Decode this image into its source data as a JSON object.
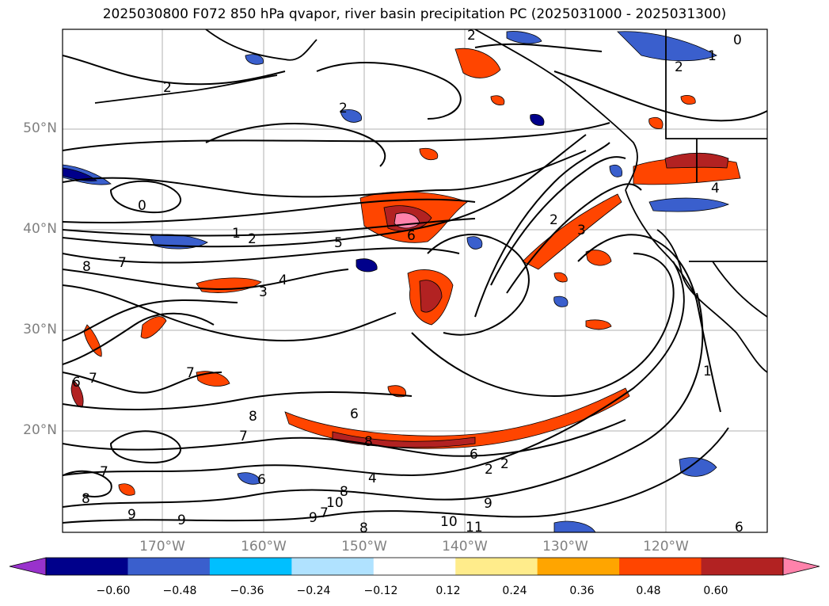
{
  "title": "2025030800 F072 850 hPa qvapor, river basin precipitation PC (2025031000 - 2025031300)",
  "lat_labels": [
    "50°N",
    "40°N",
    "30°N",
    "20°N"
  ],
  "lon_labels": [
    "170°W",
    "160°W",
    "150°W",
    "140°W",
    "130°W",
    "120°W"
  ],
  "contour_labels": [
    "2",
    "2",
    "2",
    "1",
    "0",
    "0",
    "1",
    "2",
    "5",
    "6",
    "2",
    "3",
    "2",
    "4",
    "8",
    "7",
    "3",
    "4",
    "7",
    "6",
    "7",
    "8",
    "6",
    "8",
    "7",
    "6",
    "2",
    "2",
    "8",
    "7",
    "4",
    "6",
    "8",
    "9",
    "9",
    "9",
    "7",
    "10",
    "8",
    "10",
    "11",
    "9",
    "1",
    "6"
  ],
  "colorbar": {
    "ticks": [
      "−0.60",
      "−0.48",
      "−0.36",
      "−0.24",
      "−0.12",
      "0.12",
      "0.24",
      "0.36",
      "0.48",
      "0.60"
    ],
    "colors": [
      "#9932cc",
      "#00008b",
      "#3a5fcd",
      "#00bfff",
      "#b0e2ff",
      "#ffffff",
      "#ffec8b",
      "#ffa500",
      "#ff4500",
      "#b22222",
      "#ff82ab"
    ]
  }
}
